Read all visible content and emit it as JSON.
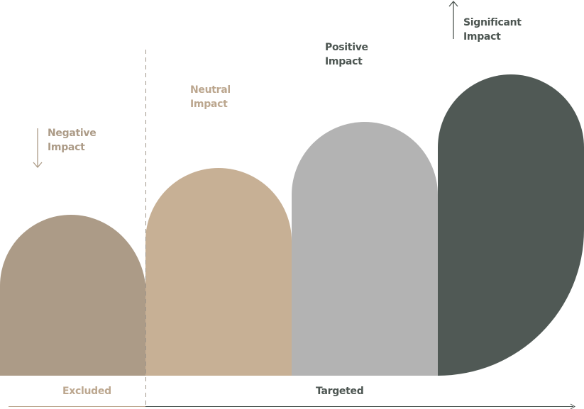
{
  "stages": [
    {
      "line1": "Negative",
      "line2": "Impact",
      "color": "#AC9B87",
      "text_color": "#AC9B87",
      "indicator": "arrow-down"
    },
    {
      "line1": "Neutral",
      "line2": "Impact",
      "color": "#C7B095",
      "text_color": "#BCA78F",
      "indicator": "none"
    },
    {
      "line1": "Positive",
      "line2": "Impact",
      "color": "#B3B3B3",
      "text_color": "#4D5652",
      "indicator": "none"
    },
    {
      "line1": "Significant",
      "line2": "Impact",
      "color": "#505955",
      "text_color": "#4D5652",
      "indicator": "arrow-up"
    }
  ],
  "axis": {
    "excluded_label": "Excluded",
    "targeted_label": "Targeted",
    "excluded_color": "#BCA78F",
    "targeted_color": "#4D5652",
    "line_color": "#4D5652",
    "divider_color": "#A0968A"
  }
}
